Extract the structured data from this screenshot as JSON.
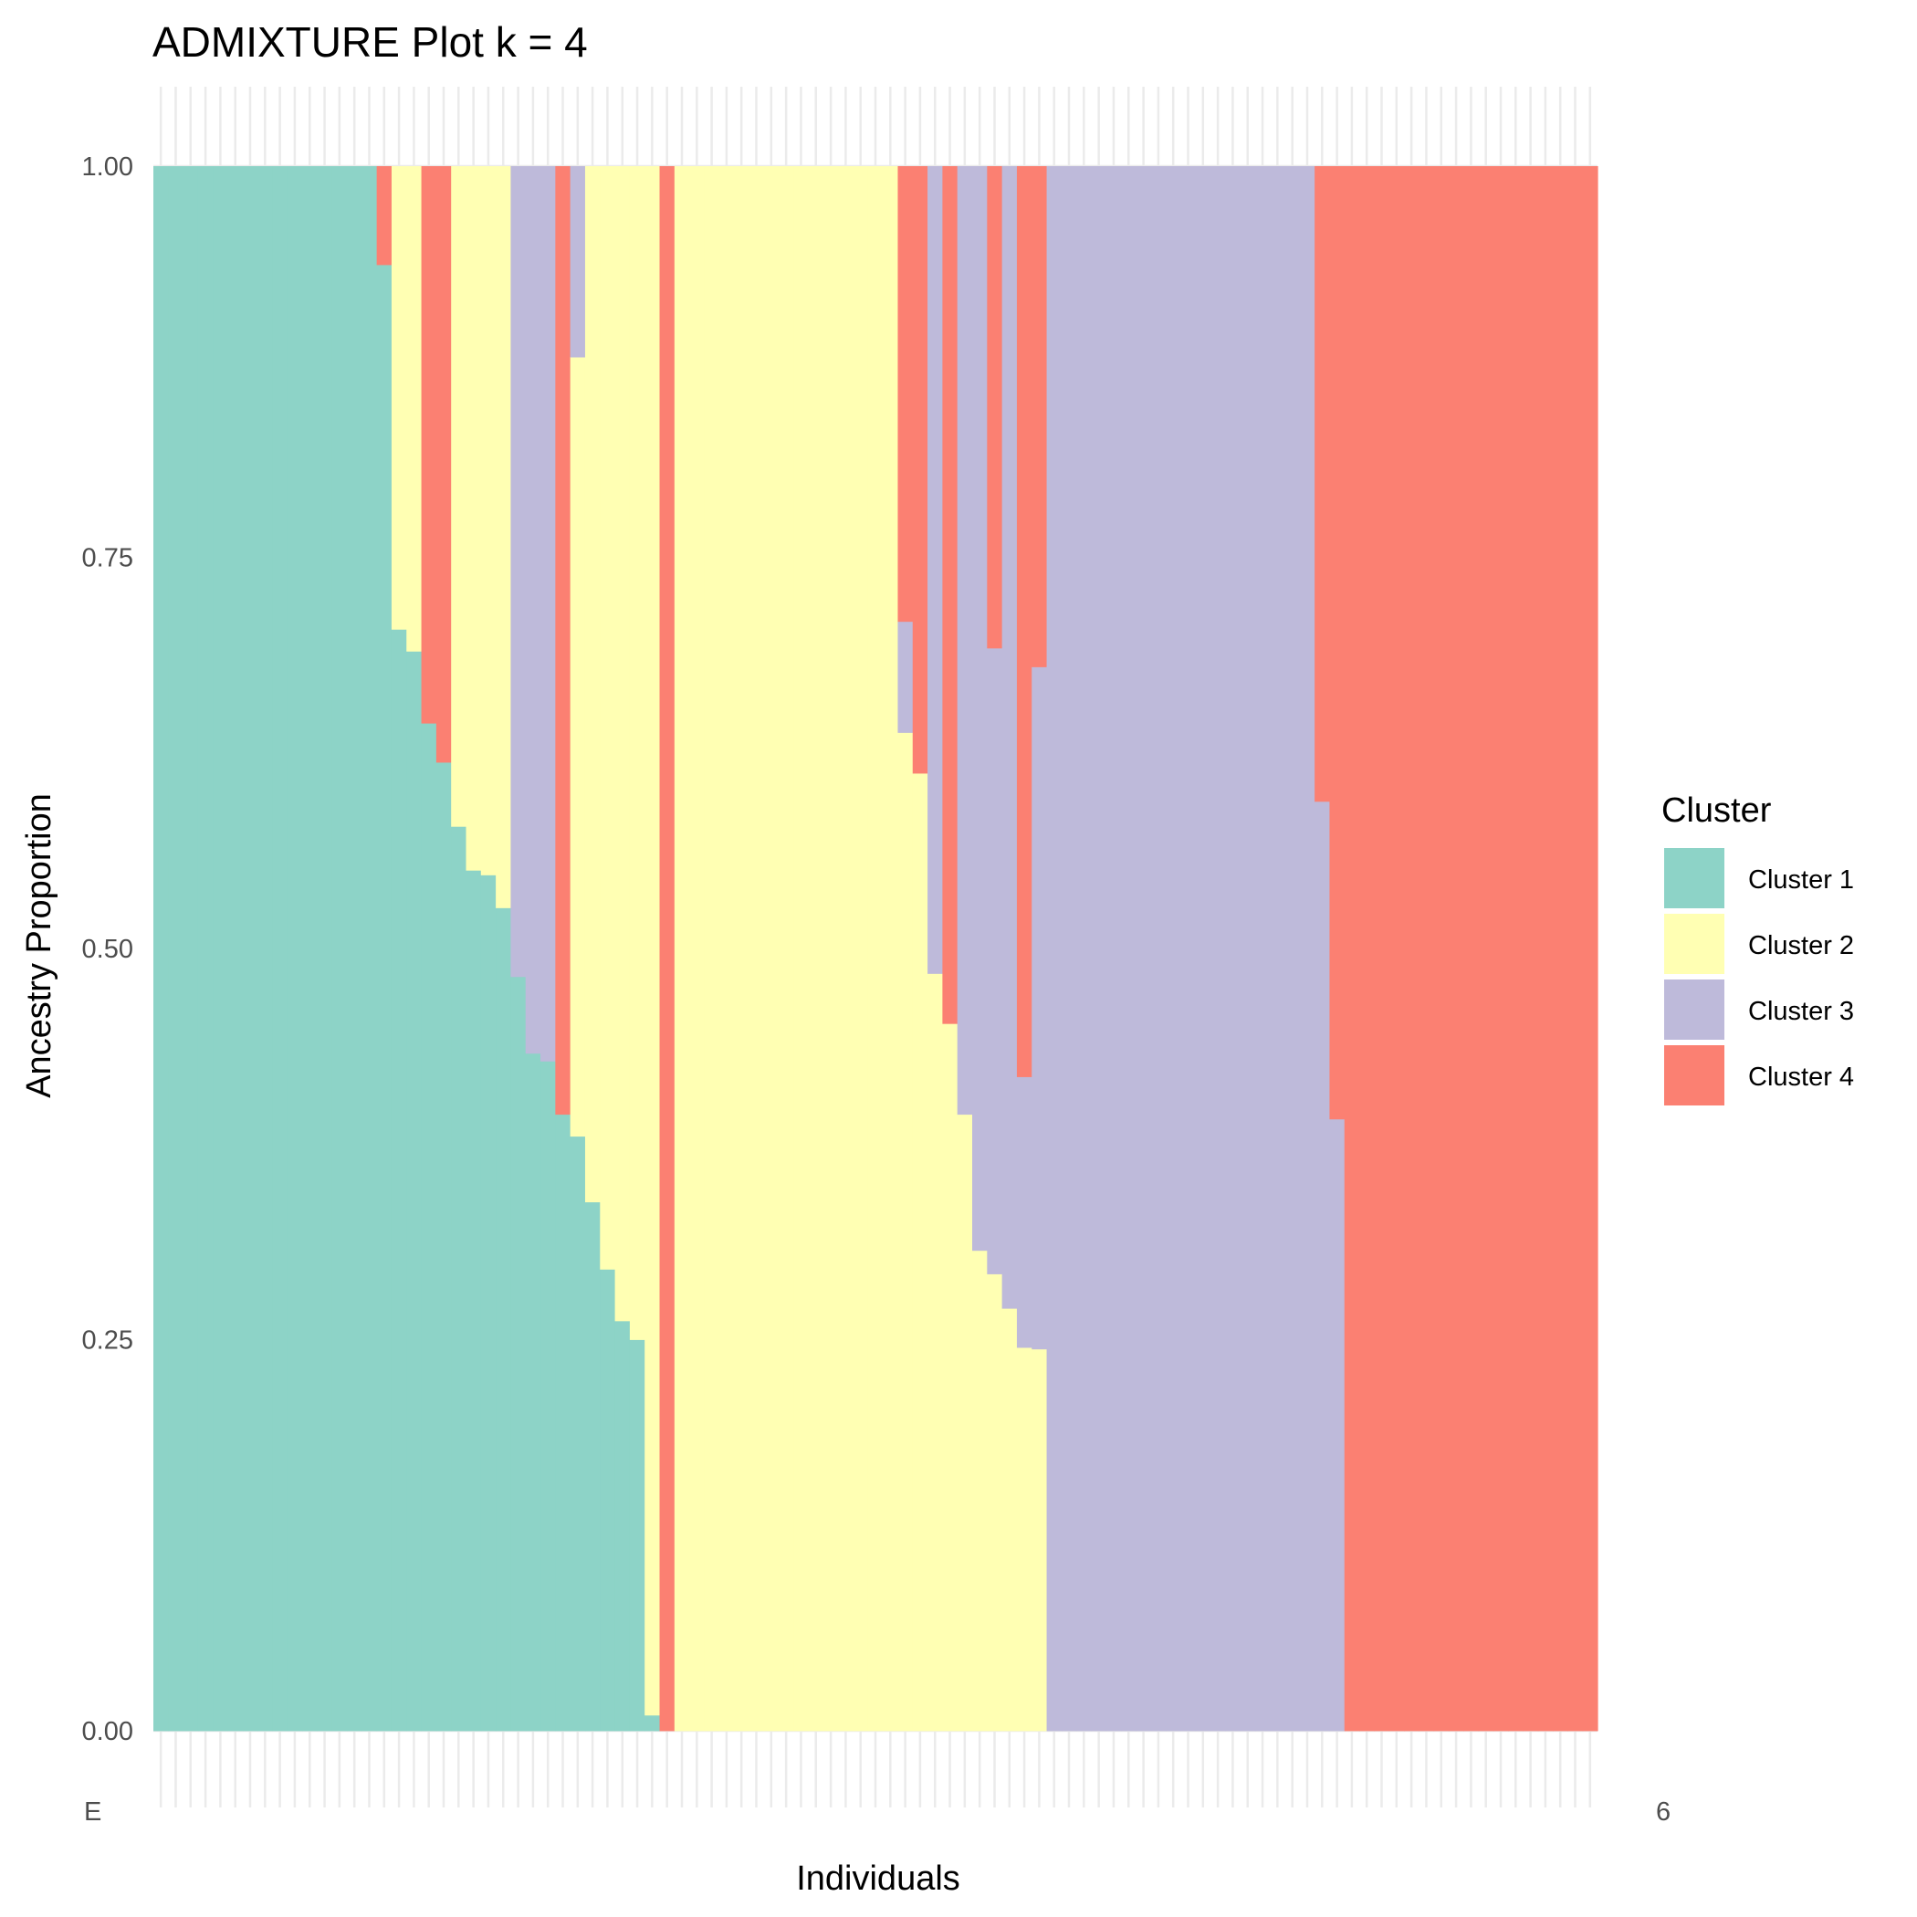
{
  "chart_data": {
    "type": "bar",
    "stacked": true,
    "title": "ADMIXTURE Plot k = 4",
    "xlabel": "Individuals",
    "ylabel": "Ancestry Proportion",
    "ylim": [
      0,
      1
    ],
    "yticks": [
      "0.00",
      "0.25",
      "0.50",
      "0.75",
      "1.00"
    ],
    "grid": true,
    "legend": {
      "title": "Cluster",
      "position": "right"
    },
    "x_tick_labels_visible_fragments": {
      "first": "E",
      "last": "6"
    },
    "series": [
      {
        "name": "Cluster 1",
        "color": "#8dd3c7"
      },
      {
        "name": "Cluster 2",
        "color": "#ffffb3"
      },
      {
        "name": "Cluster 3",
        "color": "#bebada"
      },
      {
        "name": "Cluster 4",
        "color": "#fb8072"
      }
    ],
    "individuals": [
      [
        1,
        0,
        0,
        0
      ],
      [
        1,
        0,
        0,
        0
      ],
      [
        1,
        0,
        0,
        0
      ],
      [
        1,
        0,
        0,
        0
      ],
      [
        1,
        0,
        0,
        0
      ],
      [
        1,
        0,
        0,
        0
      ],
      [
        1,
        0,
        0,
        0
      ],
      [
        1,
        0,
        0,
        0
      ],
      [
        1,
        0,
        0,
        0
      ],
      [
        1,
        0,
        0,
        0
      ],
      [
        1,
        0,
        0,
        0
      ],
      [
        1,
        0,
        0,
        0
      ],
      [
        1,
        0,
        0,
        0
      ],
      [
        1,
        0,
        0,
        0
      ],
      [
        1,
        0,
        0,
        0
      ],
      [
        0.937,
        0,
        0,
        0.063
      ],
      [
        0.704,
        0.296,
        0,
        0
      ],
      [
        0.69,
        0.31,
        0,
        0
      ],
      [
        0.644,
        0,
        0,
        0.356
      ],
      [
        0.619,
        0,
        0,
        0.381
      ],
      [
        0.578,
        0.422,
        0,
        0
      ],
      [
        0.55,
        0.45,
        0,
        0
      ],
      [
        0.547,
        0.453,
        0,
        0
      ],
      [
        0.526,
        0.474,
        0,
        0
      ],
      [
        0.482,
        0,
        0.518,
        0
      ],
      [
        0.433,
        0,
        0.567,
        0
      ],
      [
        0.428,
        0,
        0.572,
        0
      ],
      [
        0.394,
        0,
        0,
        0.606
      ],
      [
        0.38,
        0.498,
        0.122,
        0
      ],
      [
        0.338,
        0.662,
        0,
        0
      ],
      [
        0.295,
        0.705,
        0,
        0
      ],
      [
        0.262,
        0.738,
        0,
        0
      ],
      [
        0.25,
        0.75,
        0,
        0
      ],
      [
        0.01,
        0.99,
        0,
        0
      ],
      [
        0,
        0,
        0,
        1
      ],
      [
        0,
        1,
        0,
        0
      ],
      [
        0,
        1,
        0,
        0
      ],
      [
        0,
        1,
        0,
        0
      ],
      [
        0,
        1,
        0,
        0
      ],
      [
        0,
        1,
        0,
        0
      ],
      [
        0,
        1,
        0,
        0
      ],
      [
        0,
        1,
        0,
        0
      ],
      [
        0,
        1,
        0,
        0
      ],
      [
        0,
        1,
        0,
        0
      ],
      [
        0,
        1,
        0,
        0
      ],
      [
        0,
        1,
        0,
        0
      ],
      [
        0,
        1,
        0,
        0
      ],
      [
        0,
        1,
        0,
        0
      ],
      [
        0,
        1,
        0,
        0
      ],
      [
        0,
        1,
        0,
        0
      ],
      [
        0,
        0.638,
        0.071,
        0.291
      ],
      [
        0,
        0.612,
        0,
        0.388
      ],
      [
        0,
        0.484,
        0.516,
        0
      ],
      [
        0,
        0.452,
        0,
        0.548
      ],
      [
        0,
        0.394,
        0.606,
        0
      ],
      [
        0,
        0.307,
        0.693,
        0
      ],
      [
        0,
        0.292,
        0.4,
        0.308
      ],
      [
        0,
        0.27,
        0.73,
        0
      ],
      [
        0,
        0.245,
        0.173,
        0.582
      ],
      [
        0,
        0.244,
        0.436,
        0.32
      ],
      [
        0,
        0,
        1,
        0
      ],
      [
        0,
        0,
        1,
        0
      ],
      [
        0,
        0,
        1,
        0
      ],
      [
        0,
        0,
        1,
        0
      ],
      [
        0,
        0,
        1,
        0
      ],
      [
        0,
        0,
        1,
        0
      ],
      [
        0,
        0,
        1,
        0
      ],
      [
        0,
        0,
        1,
        0
      ],
      [
        0,
        0,
        1,
        0
      ],
      [
        0,
        0,
        1,
        0
      ],
      [
        0,
        0,
        1,
        0
      ],
      [
        0,
        0,
        1,
        0
      ],
      [
        0,
        0,
        1,
        0
      ],
      [
        0,
        0,
        1,
        0
      ],
      [
        0,
        0,
        1,
        0
      ],
      [
        0,
        0,
        1,
        0
      ],
      [
        0,
        0,
        1,
        0
      ],
      [
        0,
        0,
        1,
        0
      ],
      [
        0,
        0,
        0.594,
        0.406
      ],
      [
        0,
        0,
        0.391,
        0.609
      ],
      [
        0,
        0,
        0,
        1
      ],
      [
        0,
        0,
        0,
        1
      ],
      [
        0,
        0,
        0,
        1
      ],
      [
        0,
        0,
        0,
        1
      ],
      [
        0,
        0,
        0,
        1
      ],
      [
        0,
        0,
        0,
        1
      ],
      [
        0,
        0,
        0,
        1
      ],
      [
        0,
        0,
        0,
        1
      ],
      [
        0,
        0,
        0,
        1
      ],
      [
        0,
        0,
        0,
        1
      ],
      [
        0,
        0,
        0,
        1
      ],
      [
        0,
        0,
        0,
        1
      ],
      [
        0,
        0,
        0,
        1
      ],
      [
        0,
        0,
        0,
        1
      ],
      [
        0,
        0,
        0,
        1
      ],
      [
        0,
        0,
        0,
        1
      ],
      [
        0,
        0,
        0,
        1
      ]
    ]
  }
}
